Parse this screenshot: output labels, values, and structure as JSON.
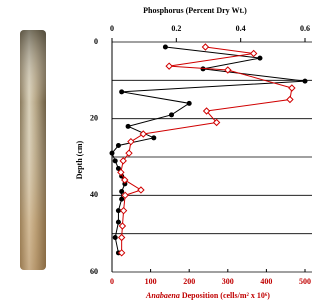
{
  "chart_data": {
    "type": "line",
    "x2label": "Phosphorus (Percent Dry Wt.)",
    "xlabel": {
      "italic": "Anabaena",
      "rest": "Deposition (cells/m² x 10⁶)"
    },
    "ylabel": "Depth (cm)",
    "ylim": [
      0,
      60
    ],
    "yticks": [
      0,
      20,
      40,
      60
    ],
    "ygrid": [
      0,
      10,
      20,
      30,
      40,
      50,
      60
    ],
    "xlim": [
      0,
      500
    ],
    "xticks": [
      0,
      100,
      200,
      300,
      400,
      500
    ],
    "x2lim": [
      0,
      0.6
    ],
    "x2ticks": [
      0,
      0.2,
      0.4,
      0.6
    ],
    "series": [
      {
        "axis": "x2",
        "color": "#000000",
        "depth": [
          1.3,
          4.2,
          7,
          10.2,
          13,
          16,
          19,
          22,
          25,
          27,
          29,
          31,
          33,
          35,
          37,
          39,
          41,
          44,
          47,
          51,
          55
        ],
        "values": [
          0.166,
          0.46,
          0.283,
          0.6,
          0.03,
          0.24,
          0.185,
          0.05,
          0.13,
          0.02,
          0.0,
          0.01,
          0.02,
          0.03,
          0.04,
          0.03,
          0.03,
          0.02,
          0.02,
          0.01,
          0.02
        ]
      },
      {
        "axis": "x",
        "color": "#d00000",
        "depth": [
          1.3,
          3,
          6.3,
          7.3,
          12,
          15,
          18,
          21,
          24,
          26,
          29,
          31,
          34,
          36,
          38.6,
          40,
          44,
          48,
          51,
          55
        ],
        "values": [
          242,
          367,
          148,
          300,
          466,
          461,
          245,
          271,
          81,
          49,
          44,
          29,
          23,
          33,
          75,
          34,
          30,
          27,
          25,
          25
        ]
      }
    ]
  }
}
